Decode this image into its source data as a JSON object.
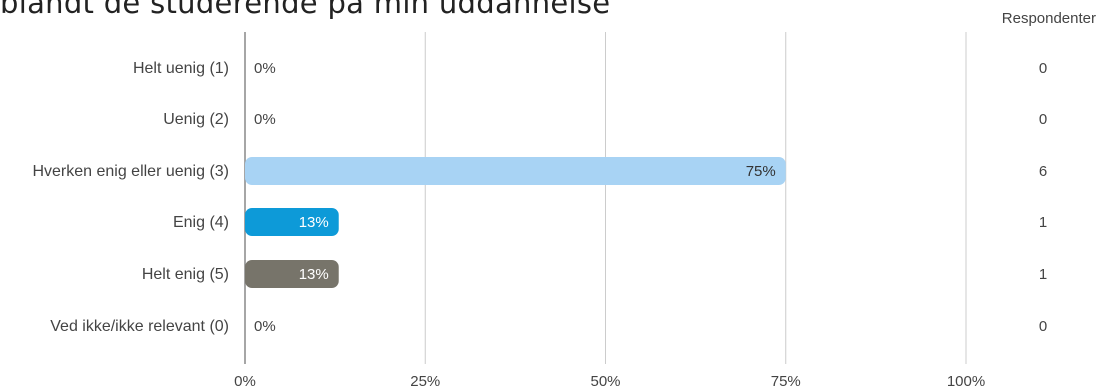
{
  "title": "blandt de studerende på min uddannelse",
  "responses_header": "Respondenter",
  "colors": {
    "grid": "#cccccc",
    "axis": "#888888",
    "text": "#444444",
    "label_dark": "#333333",
    "label_light": "#ffffff"
  },
  "chart_data": {
    "type": "bar",
    "orientation": "horizontal",
    "title": "blandt de studerende på min uddannelse",
    "categories": [
      "Helt uenig (1)",
      "Uenig (2)",
      "Hverken enig eller uenig (3)",
      "Enig (4)",
      "Helt enig (5)",
      "Ved ikke/ikke relevant (0)"
    ],
    "values": [
      0,
      0,
      75,
      13,
      13,
      0
    ],
    "value_labels": [
      "0%",
      "0%",
      "75%",
      "13%",
      "13%",
      "0%"
    ],
    "respondents": [
      "0",
      "0",
      "6",
      "1",
      "1",
      "0"
    ],
    "bar_colors": [
      "#a8d3f4",
      "#a8d3f4",
      "#a8d3f4",
      "#0d9ad8",
      "#77746a",
      "#a8d3f4"
    ],
    "xticks": [
      0,
      25,
      50,
      75,
      100
    ],
    "xtick_labels": [
      "0%",
      "25%",
      "50%",
      "75%",
      "100%"
    ],
    "xlim": [
      0,
      100
    ],
    "grid": true,
    "legend": "none"
  }
}
